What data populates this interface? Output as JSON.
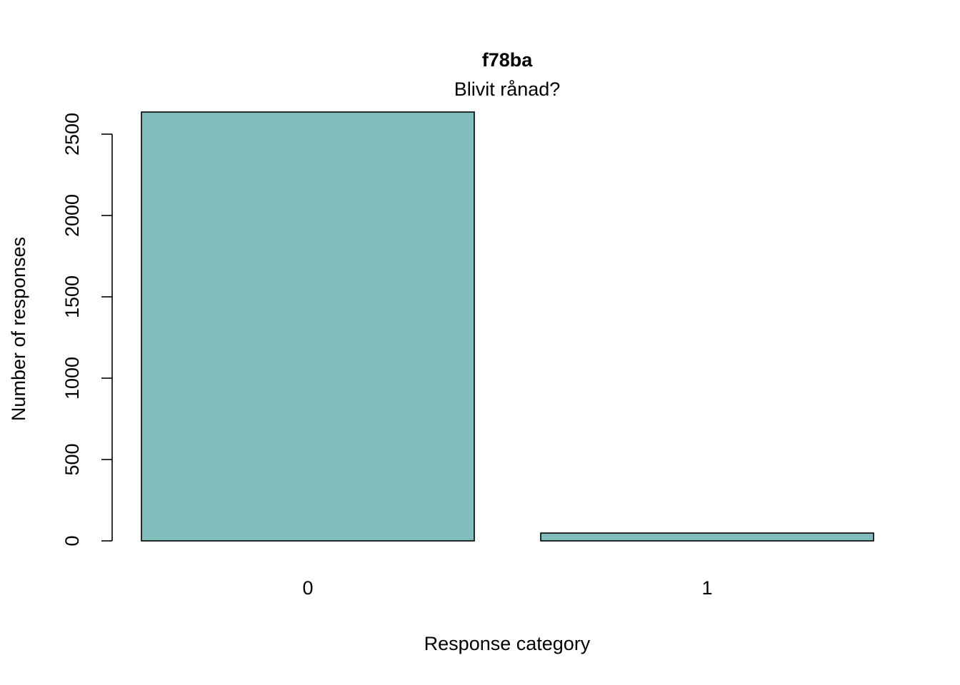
{
  "chart_data": {
    "type": "bar",
    "title": "f78ba",
    "subtitle": "Blivit rånad?",
    "xlabel": "Response category",
    "ylabel": "Number of responses",
    "categories": [
      "0",
      "1"
    ],
    "values": [
      2636,
      48
    ],
    "ylim": [
      0,
      2640
    ],
    "yticks": [
      0,
      500,
      1000,
      1500,
      2000,
      2500
    ],
    "yticklabels": [
      "0",
      "500",
      "1000",
      "1500",
      "2000",
      "2500"
    ],
    "bar_color": "#80BCBC",
    "grid": false,
    "legend": "none"
  }
}
